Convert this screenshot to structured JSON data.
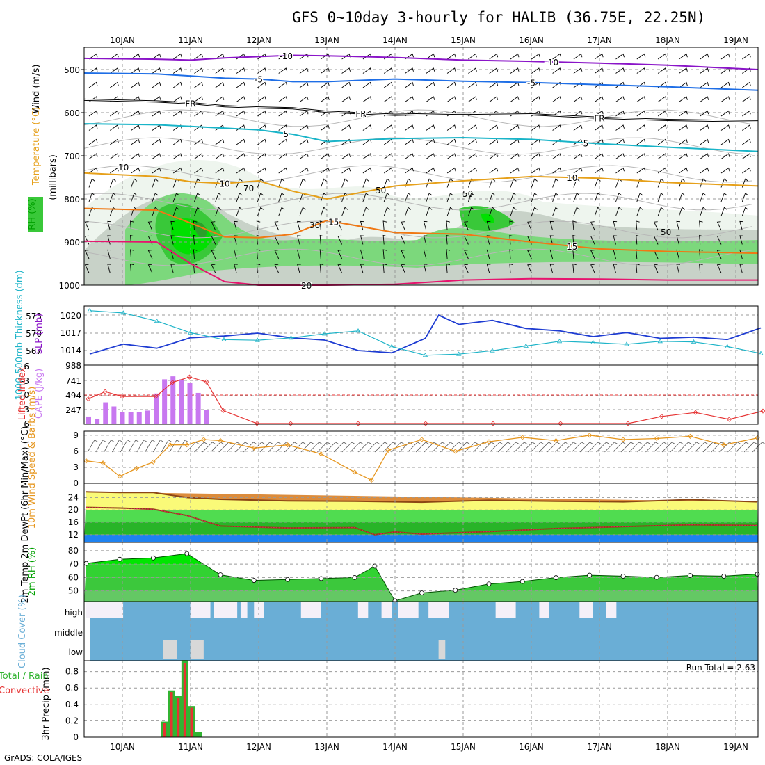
{
  "title": "GFS 0~10day 3-hourly for HALIB (36.75E, 22.25N)",
  "footer": "GrADS: COLA/IGES",
  "colors": {
    "purple": "#8a14c8",
    "blue": "#1e6ee6",
    "black": "#000000",
    "teal": "#19b4c8",
    "gold": "#e6a019",
    "orange": "#f07814",
    "magenta": "#e6146e",
    "slp": "#1e3cd2",
    "thick": "#1eb4c8",
    "li": "#e63232",
    "cape": "#c878f0",
    "wind": "#e6961e",
    "temp": "#8c4614",
    "dew": "#e61e64",
    "rhFill": "#00c800",
    "cloudBlue": "#6aaed6",
    "cloudWhite": "#f5f0f8",
    "precipGreen": "#32b432",
    "precipRed": "#e63232"
  },
  "chart_data": [
    {
      "type": "contour",
      "name": "upper-air time-height cross section",
      "ylabel_parts": [
        {
          "text": "Wind (m/s)",
          "color": "#000000"
        },
        {
          "text": "Temperature (°C)",
          "color": "#e6a019"
        },
        {
          "text": "RH (%)",
          "color": "#00c800"
        }
      ],
      "ylabel_units": "(millibars)",
      "y_axis": "pressure (mb)",
      "ylim": [
        1000,
        450
      ],
      "yticks": [
        500,
        600,
        700,
        800,
        900,
        1000
      ],
      "x_ticks_top": [
        "10JAN",
        "11JAN",
        "12JAN",
        "13JAN",
        "14JAN",
        "15JAN",
        "16JAN",
        "17JAN",
        "18JAN",
        "19JAN"
      ],
      "isotherms": [
        {
          "label": "-10",
          "color": "#8a14c8",
          "pressure": [
            474,
            476,
            478,
            473,
            470,
            467,
            468,
            472,
            478,
            481,
            485,
            490,
            500
          ],
          "label_at": [
            2.4,
            6.3
          ]
        },
        {
          "label": "-5",
          "color": "#1e6ee6",
          "pressure": [
            508,
            510,
            515,
            520,
            522,
            528,
            528,
            522,
            527,
            530,
            535,
            540,
            548
          ],
          "label_at": [
            2.0,
            6.0
          ]
        },
        {
          "label": "FR",
          "color": "#000000",
          "pressure": [
            570,
            574,
            578,
            585,
            588,
            590,
            598,
            605,
            602,
            604,
            612,
            617,
            620
          ],
          "label_at": [
            1.0,
            3.5,
            7.0
          ]
        },
        {
          "label": "5",
          "color": "#19b4c8",
          "pressure": [
            626,
            628,
            632,
            636,
            640,
            650,
            667,
            660,
            658,
            662,
            672,
            680,
            690
          ],
          "label_at": [
            2.4,
            6.8
          ]
        },
        {
          "label": "10",
          "color": "#e6a019",
          "pressure": [
            740,
            748,
            760,
            764,
            758,
            782,
            800,
            770,
            758,
            748,
            752,
            762,
            770
          ],
          "label_at": [
            1.5,
            6.6
          ]
        },
        {
          "label": "15",
          "color": "#f07814",
          "pressure": [
            822,
            826,
            856,
            888,
            890,
            882,
            850,
            878,
            882,
            900,
            916,
            922,
            926
          ],
          "label_at": [
            3.1,
            6.6
          ]
        },
        {
          "label": "20",
          "color": "#e6146e",
          "pressure": [
            898,
            900,
            950,
            992,
            1000,
            1000,
            1000,
            998,
            988,
            985,
            986,
            988,
            988
          ],
          "label_at": [
            2.7
          ]
        }
      ],
      "rh_labels": [
        "10",
        "30",
        "50",
        "70"
      ]
    },
    {
      "type": "line",
      "name": "thickness and SLP",
      "ylabel_left": "1000-500mb Thickness (dm)",
      "ylabel_right": "SLP (mb)",
      "thickness_ticks": [
        567,
        570,
        573
      ],
      "slp_ticks": [
        1014,
        1017,
        1020
      ],
      "bottom_tick": "988",
      "series": [
        {
          "name": "SLP (mb)",
          "color": "#1e3cd2",
          "x": [
            0,
            0.5,
            1,
            1.5,
            2,
            2.5,
            3,
            3.5,
            4,
            4.5,
            5,
            5.2,
            5.5,
            6,
            6.5,
            7,
            7.5,
            8,
            8.5,
            9,
            9.5,
            10
          ],
          "values": [
            1013.4,
            1015.1,
            1014.4,
            1016.2,
            1016.5,
            1017.0,
            1016.2,
            1015.8,
            1014.0,
            1013.6,
            1016.1,
            1020.1,
            1018.5,
            1019.2,
            1017.8,
            1017.4,
            1016.4,
            1017.1,
            1016.1,
            1016.3,
            1015.9,
            1017.9
          ]
        },
        {
          "name": "1000-500mb Thickness (dm)",
          "color": "#1eb4c8",
          "x": [
            0,
            0.5,
            1,
            1.5,
            2,
            2.5,
            3,
            3.5,
            4,
            4.5,
            5,
            5.5,
            6,
            6.5,
            7,
            7.5,
            8,
            8.5,
            9,
            9.5,
            10
          ],
          "values": [
            574.0,
            573.6,
            572.2,
            570.2,
            569.0,
            568.9,
            569.3,
            570.0,
            570.5,
            567.8,
            566.3,
            566.5,
            567.1,
            567.9,
            568.7,
            568.5,
            568.2,
            568.7,
            568.6,
            567.8,
            566.6
          ]
        }
      ]
    },
    {
      "type": "bar",
      "name": "Lifted index and CAPE",
      "ylabel_left": "Lifted Index",
      "ylabel_right": "CAPE (J/kg)",
      "li_ticks": [
        "-6",
        "-3",
        "0",
        "3",
        "6"
      ],
      "cape_ticks": [
        "741",
        "494",
        "247"
      ],
      "cape": {
        "color": "#c878f0",
        "x": [
          0,
          0.125,
          0.25,
          0.375,
          0.5,
          0.625,
          0.75,
          0.875,
          1.0,
          1.125,
          1.25,
          1.375,
          1.5,
          1.625,
          1.75
        ],
        "values": [
          130,
          90,
          370,
          300,
          200,
          200,
          210,
          230,
          520,
          760,
          810,
          760,
          700,
          530,
          240
        ]
      },
      "lifted_index": {
        "color": "#e63232",
        "x": [
          0,
          0.25,
          0.5,
          1.0,
          1.25,
          1.5,
          1.75,
          2.0,
          2.5,
          3,
          4,
          5,
          6,
          7,
          8,
          8.5,
          9,
          9.5,
          10
        ],
        "values": [
          0.8,
          -0.7,
          0.3,
          0.3,
          -2.6,
          -3.7,
          -2.7,
          3.2,
          6,
          6,
          6,
          6,
          6,
          6,
          6,
          4.4,
          3.6,
          5.0,
          3.3
        ]
      }
    },
    {
      "type": "line",
      "name": "10m wind speed and barbs",
      "ylabel": "10m Wind Speed & Barbs (m/s)",
      "yticks": [
        0,
        3,
        6,
        9
      ],
      "series": [
        {
          "name": "10m wind speed",
          "color": "#e6961e",
          "x": [
            0,
            0.25,
            0.5,
            0.75,
            1.0,
            1.25,
            1.5,
            1.75,
            2,
            2.5,
            3,
            3.5,
            4,
            4.25,
            4.5,
            5,
            5.5,
            6,
            6.5,
            7,
            7.5,
            8,
            8.5,
            9,
            9.5,
            10
          ],
          "values": [
            4.2,
            3.8,
            1.3,
            2.8,
            4.0,
            7.2,
            7.2,
            8.2,
            8.0,
            6.6,
            7.2,
            5.5,
            2.1,
            0.6,
            6.2,
            8.2,
            6.0,
            7.8,
            8.6,
            8.0,
            9.0,
            8.2,
            8.4,
            8.8,
            7.2,
            8.5
          ]
        }
      ]
    },
    {
      "type": "area",
      "name": "2m temperature and dewpoint",
      "ylabel": "2m Temp 2m DewPt (6hr Min/Max) (°C)",
      "yticks": [
        12,
        16,
        20,
        24
      ],
      "series": [
        {
          "name": "2m Temp",
          "color": "#8c4614",
          "x": [
            0,
            0.5,
            1,
            1.5,
            2,
            3,
            4,
            5,
            6,
            7,
            8,
            9,
            10
          ],
          "values": [
            25.8,
            25.6,
            25.6,
            24.0,
            23.4,
            22.9,
            22.8,
            22.5,
            23.1,
            22.8,
            22.6,
            23.3,
            22.6
          ]
        },
        {
          "name": "2m DewPt",
          "color": "#e61e64",
          "x": [
            0,
            0.5,
            1,
            1.5,
            2,
            3,
            4,
            4.3,
            4.6,
            5,
            6,
            7,
            8,
            9,
            10
          ],
          "values": [
            20.8,
            20.6,
            20.2,
            18.2,
            14.8,
            14.2,
            14.3,
            12.0,
            12.9,
            12.2,
            13.0,
            14.0,
            14.6,
            15.2,
            15.0
          ]
        }
      ]
    },
    {
      "type": "area",
      "name": "2m relative humidity",
      "ylabel": "2m RH (%)",
      "yticks": [
        50,
        60,
        70,
        80
      ],
      "series": [
        {
          "name": "2m RH",
          "color": "#00c800",
          "x": [
            0,
            0.5,
            1,
            1.5,
            2,
            2.5,
            3,
            3.5,
            4,
            4.3,
            4.6,
            5,
            5.5,
            6,
            6.5,
            7,
            7.5,
            8,
            8.5,
            9,
            9.5,
            10
          ],
          "values": [
            70.5,
            73.6,
            74.6,
            77.8,
            62.0,
            57.8,
            58.5,
            59.2,
            60.0,
            68.5,
            42.5,
            48.5,
            50.5,
            55.1,
            57.0,
            59.9,
            61.7,
            61.0,
            60.1,
            61.5,
            61.0,
            62.5
          ]
        }
      ]
    },
    {
      "type": "bar",
      "name": "cloud cover",
      "ylabel": "Cloud Cover (%)",
      "levels": [
        "high",
        "middle",
        "low"
      ],
      "high_gaps": [
        [
          0.0,
          0.55
        ],
        [
          1.55,
          1.85
        ],
        [
          1.9,
          2.25
        ],
        [
          2.3,
          2.4
        ],
        [
          2.5,
          2.65
        ],
        [
          3.2,
          3.5
        ],
        [
          4.05,
          4.2
        ],
        [
          4.4,
          4.55
        ],
        [
          4.65,
          4.95
        ],
        [
          5.1,
          5.4
        ],
        [
          6.1,
          6.4
        ],
        [
          6.75,
          6.9
        ],
        [
          7.35,
          7.55
        ],
        [
          7.75,
          7.9
        ]
      ],
      "low_cloud": [
        [
          1.15,
          1.35
        ],
        [
          1.55,
          1.75
        ],
        [
          5.25,
          5.35
        ]
      ]
    },
    {
      "type": "bar",
      "name": "3hr precipitation",
      "ylabel": "3hr Precip (mm)",
      "legend": [
        "Total / Rain",
        "Convective"
      ],
      "annotation": "Run Total = 2.63",
      "yticks": [
        0,
        0.2,
        0.4,
        0.6,
        0.8
      ],
      "x_ticks_bottom": [
        "10JAN",
        "11JAN",
        "12JAN",
        "13JAN",
        "14JAN",
        "15JAN",
        "16JAN",
        "17JAN",
        "18JAN",
        "19JAN"
      ],
      "bars": {
        "x": [
          0.6,
          0.7,
          0.8,
          0.9,
          1.0,
          1.1
        ],
        "total": [
          0.19,
          0.57,
          0.5,
          0.94,
          0.38,
          0.06
        ],
        "convective": [
          0.17,
          0.55,
          0.48,
          0.9,
          0.36,
          0.0
        ]
      }
    }
  ]
}
